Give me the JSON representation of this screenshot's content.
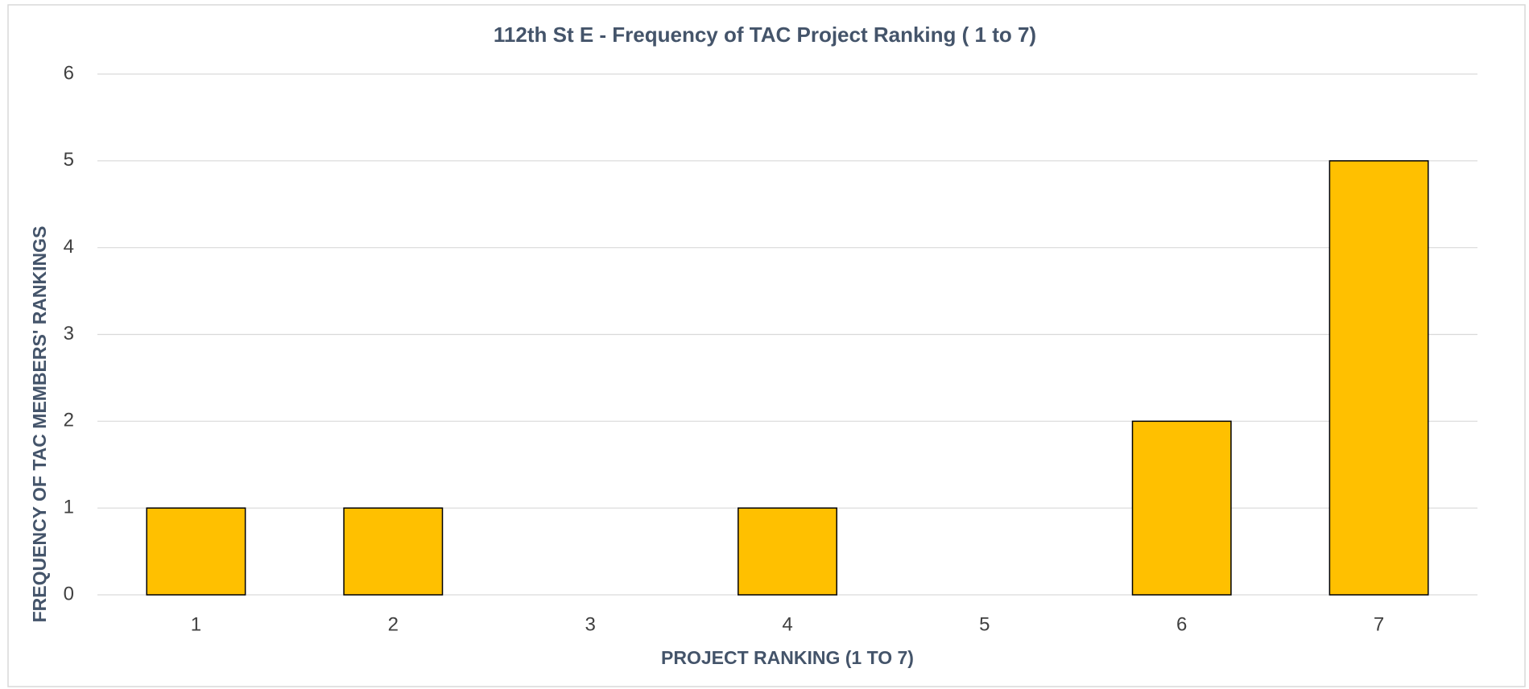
{
  "chart_data": {
    "type": "bar",
    "title": "112th St E - Frequency of TAC Project Ranking ( 1 to 7)",
    "x_label": "PROJECT RANKING (1 TO 7)",
    "y_label": "FREQUENCY OF TAC MEMBERS' RANKINGS",
    "categories": [
      "1",
      "2",
      "3",
      "4",
      "5",
      "6",
      "7"
    ],
    "values": [
      1,
      1,
      0,
      1,
      0,
      2,
      5
    ],
    "color": "#ffc000",
    "ylim": [
      0,
      6
    ],
    "yticks": [
      0,
      1,
      2,
      3,
      4,
      5,
      6
    ],
    "grid": true
  }
}
